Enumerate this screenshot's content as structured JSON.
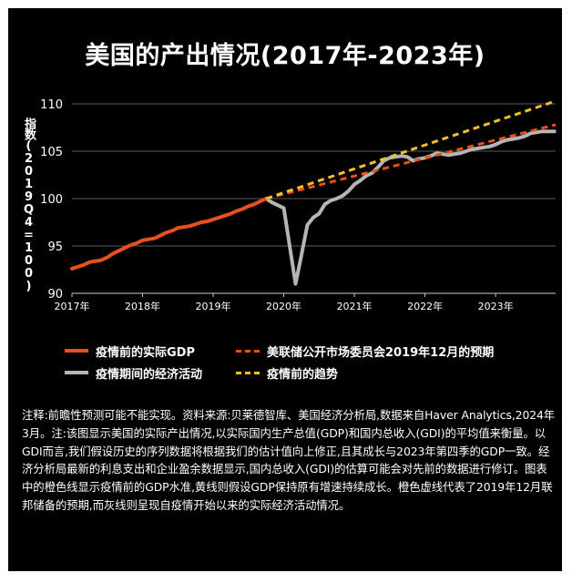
{
  "title": "美国的产出情况(2017年-2023年)",
  "ylabel": "指数(2019Q4=100)",
  "chart_data": {
    "type": "line",
    "title": "美国的产出情况(2017年-2023年)",
    "ylabel": "指数(2019Q4=100)",
    "xlabel": "",
    "ylim": [
      90,
      110
    ],
    "yticks": [
      90,
      95,
      100,
      105,
      110
    ],
    "xlim": [
      2017,
      2023.85
    ],
    "xticks": [
      "2017年",
      "2018年",
      "2019年",
      "2020年",
      "2021年",
      "2022年",
      "2023年"
    ],
    "grid": "horizontal",
    "series": [
      {
        "name": "疫情前的实际GDP",
        "style": "solid",
        "color": "#e8501e",
        "x": [
          2017.0,
          2017.083,
          2017.167,
          2017.25,
          2017.333,
          2017.417,
          2017.5,
          2017.583,
          2017.667,
          2017.75,
          2017.833,
          2017.917,
          2018.0,
          2018.083,
          2018.167,
          2018.25,
          2018.333,
          2018.417,
          2018.5,
          2018.583,
          2018.667,
          2018.75,
          2018.833,
          2018.917,
          2019.0,
          2019.083,
          2019.167,
          2019.25,
          2019.333,
          2019.417,
          2019.5,
          2019.583,
          2019.667,
          2019.75
        ],
        "y": [
          92.6,
          92.8,
          93.0,
          93.3,
          93.4,
          93.5,
          93.8,
          94.2,
          94.5,
          94.8,
          95.1,
          95.3,
          95.6,
          95.7,
          95.8,
          96.1,
          96.4,
          96.6,
          96.9,
          97.0,
          97.1,
          97.3,
          97.5,
          97.6,
          97.8,
          98.0,
          98.2,
          98.4,
          98.7,
          98.9,
          99.2,
          99.4,
          99.7,
          100.0
        ]
      },
      {
        "name": "疫情期间的经济活动",
        "style": "solid",
        "color": "#b5b5b5",
        "x": [
          2019.75,
          2019.833,
          2019.917,
          2020.0,
          2020.083,
          2020.167,
          2020.25,
          2020.333,
          2020.417,
          2020.5,
          2020.583,
          2020.667,
          2020.75,
          2020.833,
          2020.917,
          2021.0,
          2021.083,
          2021.167,
          2021.25,
          2021.333,
          2021.417,
          2021.5,
          2021.583,
          2021.667,
          2021.75,
          2021.833,
          2021.917,
          2022.0,
          2022.083,
          2022.167,
          2022.25,
          2022.333,
          2022.417,
          2022.5,
          2022.583,
          2022.667,
          2022.75,
          2022.833,
          2022.917,
          2023.0,
          2023.083,
          2023.167,
          2023.25,
          2023.333,
          2023.417,
          2023.5,
          2023.583,
          2023.667,
          2023.75,
          2023.833
        ],
        "y": [
          100.0,
          99.6,
          99.3,
          99.0,
          95.0,
          91.0,
          94.0,
          97.2,
          98.0,
          98.4,
          99.4,
          99.8,
          100.0,
          100.3,
          100.8,
          101.5,
          101.9,
          102.4,
          102.7,
          103.3,
          104.0,
          104.3,
          104.4,
          104.5,
          104.4,
          104.0,
          104.2,
          104.3,
          104.5,
          104.8,
          104.7,
          104.6,
          104.7,
          104.8,
          105.0,
          105.2,
          105.3,
          105.4,
          105.5,
          105.7,
          106.0,
          106.2,
          106.3,
          106.4,
          106.6,
          106.9,
          107.0,
          107.1,
          107.1,
          107.1
        ]
      },
      {
        "name": "美联储公开市场委员会2019年12月的预期",
        "style": "dashed",
        "color": "#e8501e",
        "x": [
          2019.75,
          2023.85
        ],
        "y": [
          100.0,
          107.8
        ]
      },
      {
        "name": "疫情前的趋势",
        "style": "dashed",
        "color": "#f5bf2a",
        "x": [
          2019.75,
          2023.85
        ],
        "y": [
          100.0,
          110.3
        ]
      }
    ]
  },
  "legend": {
    "pre_gdp": "疫情前的实际GDP",
    "fomc": "美联储公开市场委员会2019年12月的预期",
    "pandemic": "疫情期间的经济活动",
    "trend": "疫情前的趋势"
  },
  "note": "注释:前瞻性预测可能不能实现。资料来源:贝莱德智库、美国经济分析局,数据来自Haver Analytics,2024年3月。注:该图显示美国的实际产出情况,以实际国内生产总值(GDP)和国内总收入(GDI)的平均值来衡量。以GDI而言,我们假设历史的序列数据将根据我们的估计值向上修正,且其成长与2023年第四季的GDP一致。经济分析局最新的利息支出和企业盈余数据显示,国内总收入(GDI)的估算可能会对先前的数据进行修订。图表中的橙色线显示疫情前的GDP水准,黄线则假设GDP保持原有增速持续成长。橙色虚线代表了2019年12月联邦储备的预期,而灰线则呈现自疫情开始以来的实际经济活动情况。"
}
